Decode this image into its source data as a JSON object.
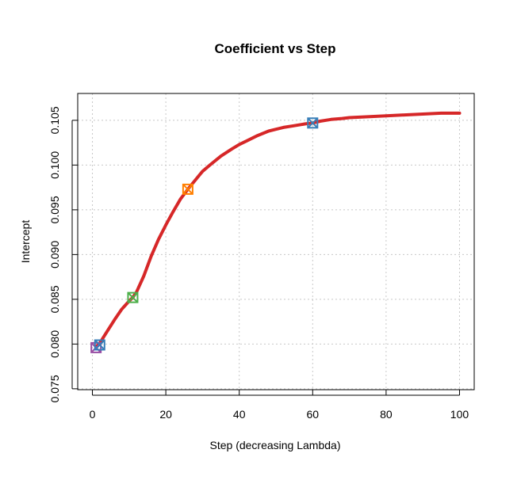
{
  "chart_data": {
    "type": "line",
    "title": "Coefficient vs Step",
    "xlabel": "Step (decreasing Lambda)",
    "ylabel": "Intercept",
    "xlim": [
      -4,
      104
    ],
    "ylim": [
      0.0749,
      0.108
    ],
    "x_ticks": [
      0,
      20,
      40,
      60,
      80,
      100
    ],
    "y_ticks": [
      0.075,
      0.08,
      0.085,
      0.09,
      0.095,
      0.1,
      0.105
    ],
    "y_tick_labels": [
      "0.075",
      "0.080",
      "0.085",
      "0.090",
      "0.095",
      "0.100",
      "0.105"
    ],
    "grid": true,
    "line_color": "#d62728",
    "series": [
      {
        "x": [
          1,
          2,
          4,
          6,
          8,
          10,
          11,
          12,
          14,
          16,
          18,
          20,
          22,
          24,
          26,
          28,
          30,
          32,
          35,
          38,
          40,
          42,
          45,
          48,
          50,
          52,
          55,
          58,
          60,
          62,
          65,
          68,
          70,
          75,
          80,
          85,
          90,
          95,
          100
        ],
        "values": [
          0.0797,
          0.0801,
          0.0814,
          0.0827,
          0.0839,
          0.0848,
          0.0852,
          0.0858,
          0.0876,
          0.0898,
          0.0917,
          0.0933,
          0.0948,
          0.0962,
          0.0973,
          0.0983,
          0.0993,
          0.1,
          0.101,
          0.1018,
          0.1023,
          0.1027,
          0.1033,
          0.1038,
          0.104,
          0.1042,
          0.1044,
          0.1046,
          0.1047,
          0.1049,
          0.1051,
          0.1052,
          0.1053,
          0.1054,
          0.1055,
          0.1056,
          0.1057,
          0.1058,
          0.1058
        ]
      }
    ],
    "markers": [
      {
        "x": 1,
        "y": 0.0796,
        "color": "#984ea3"
      },
      {
        "x": 2,
        "y": 0.0799,
        "color": "#377eb8"
      },
      {
        "x": 11,
        "y": 0.0852,
        "color": "#4daf4a"
      },
      {
        "x": 26,
        "y": 0.0973,
        "color": "#ff7f00"
      },
      {
        "x": 60,
        "y": 0.1047,
        "color": "#377eb8"
      }
    ]
  }
}
